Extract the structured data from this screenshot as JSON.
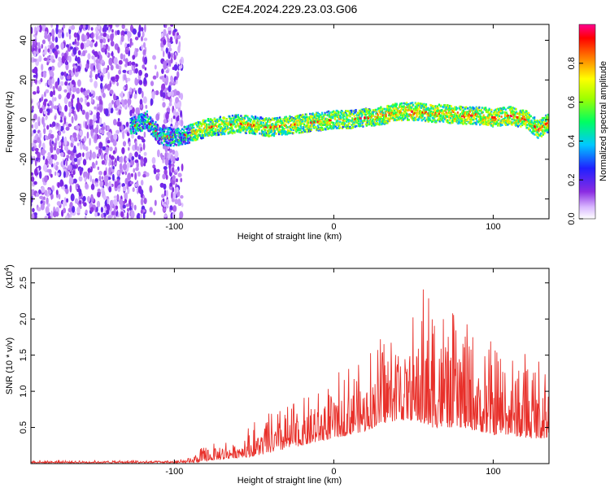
{
  "title": "C2E4.2024.229.23.03.G06",
  "chart_data": [
    {
      "type": "heatmap",
      "title": "C2E4.2024.229.23.03.G06",
      "xlabel": "Height of straight line (km)",
      "ylabel": "Frequency (Hz)",
      "xlim": [
        -190,
        135
      ],
      "ylim": [
        -50,
        48
      ],
      "xticks": [
        -100,
        0,
        100
      ],
      "yticks": [
        -40,
        -20,
        0,
        20,
        40
      ],
      "colorbar": {
        "label": "Normalized spectral amplitude",
        "range": [
          0,
          1
        ],
        "ticks": [
          "0.0",
          "0.2",
          "0.4",
          "0.6",
          "0.8"
        ],
        "colormap": "rainbow (white-violet-blue-cyan-green-yellow-red-magenta)"
      },
      "ridge": {
        "x": [
          -125,
          -118,
          -110,
          -100,
          -90,
          -80,
          -70,
          -60,
          -50,
          -40,
          -30,
          -20,
          -10,
          0,
          10,
          20,
          30,
          40,
          50,
          60,
          70,
          80,
          90,
          100,
          110,
          120,
          128,
          133
        ],
        "y": [
          -3,
          0,
          -8,
          -9,
          -7,
          -4,
          -3,
          -2,
          -3,
          -4,
          -3,
          -2,
          -1,
          0,
          0,
          1,
          2,
          4,
          4,
          3,
          3,
          2,
          2,
          1,
          2,
          0,
          -5,
          -2
        ]
      },
      "noise_region_x": [
        -190,
        -95
      ]
    },
    {
      "type": "line",
      "xlabel": "Height of straight line (km)",
      "ylabel": "SNR (10 * v/v)",
      "y_multiplier": "(x10",
      "y_multiplier_exp": "4",
      "y_multiplier_close": ")",
      "xlim": [
        -190,
        135
      ],
      "ylim": [
        0,
        2.7
      ],
      "xticks": [
        -100,
        0,
        100
      ],
      "yticks": [
        0.5,
        1.0,
        1.5,
        2.0,
        2.5
      ],
      "series": [
        {
          "color": "#e8302a",
          "envelope": {
            "x": [
              -190,
              -120,
              -95,
              -90,
              -85,
              -75,
              -60,
              -50,
              -40,
              -30,
              -20,
              -10,
              0,
              10,
              20,
              30,
              40,
              50,
              55,
              60,
              70,
              80,
              90,
              100,
              110,
              120,
              130,
              135
            ],
            "base": [
              0.01,
              0.01,
              0.01,
              0.01,
              0.02,
              0.05,
              0.08,
              0.1,
              0.15,
              0.2,
              0.25,
              0.3,
              0.35,
              0.4,
              0.45,
              0.55,
              0.6,
              0.6,
              0.55,
              0.5,
              0.5,
              0.5,
              0.45,
              0.4,
              0.4,
              0.35,
              0.35,
              0.35
            ],
            "peak": [
              0.05,
              0.05,
              0.06,
              0.08,
              0.2,
              0.3,
              0.4,
              0.6,
              0.7,
              0.8,
              0.9,
              1.0,
              1.2,
              1.4,
              1.6,
              1.8,
              2.0,
              2.1,
              2.5,
              2.5,
              2.2,
              2.0,
              1.8,
              1.7,
              1.6,
              1.6,
              1.5,
              1.5
            ]
          }
        }
      ]
    }
  ]
}
